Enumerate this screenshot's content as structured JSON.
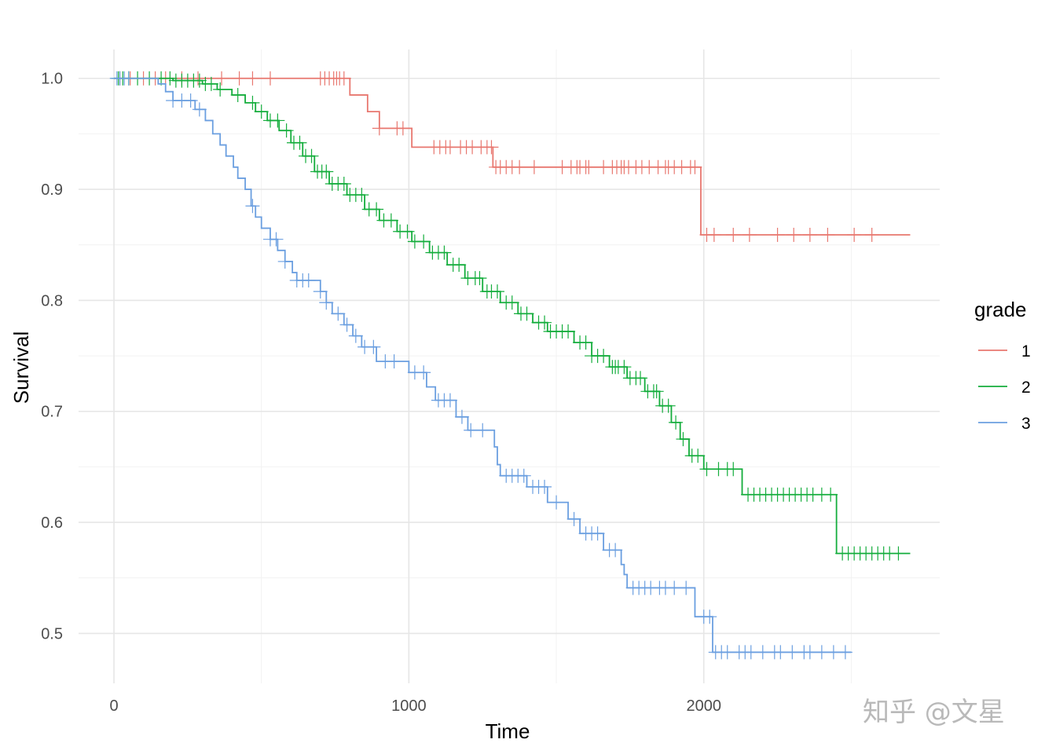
{
  "chart_data": {
    "type": "line",
    "step": true,
    "title": "",
    "xlabel": "Time",
    "ylabel": "Survival",
    "xlim": [
      -120,
      2800
    ],
    "ylim": [
      0.455,
      1.026
    ],
    "xticks": [
      0,
      1000,
      2000
    ],
    "xtick_labels": [
      "0",
      "1000",
      "2000"
    ],
    "yticks": [
      0.5,
      0.6,
      0.7,
      0.8,
      0.9,
      1.0
    ],
    "ytick_labels": [
      "0.5",
      "0.6",
      "0.7",
      "0.8",
      "0.9",
      "1.0"
    ],
    "grid": true,
    "legend": {
      "title": "grade",
      "position": "right"
    },
    "series": [
      {
        "name": "1",
        "color": "#e8776f",
        "steps": [
          [
            0,
            1.0
          ],
          [
            800,
            0.985
          ],
          [
            860,
            0.97
          ],
          [
            900,
            0.955
          ],
          [
            1010,
            0.938
          ],
          [
            1285,
            0.92
          ],
          [
            1990,
            0.859
          ],
          [
            2700,
            0.859
          ]
        ],
        "censor_times": [
          20,
          55,
          100,
          140,
          175,
          230,
          285,
          365,
          425,
          470,
          530,
          700,
          715,
          730,
          745,
          755,
          765,
          780,
          900,
          960,
          980,
          1085,
          1105,
          1125,
          1140,
          1175,
          1195,
          1215,
          1245,
          1265,
          1280,
          1295,
          1310,
          1330,
          1350,
          1375,
          1425,
          1520,
          1550,
          1570,
          1580,
          1600,
          1610,
          1660,
          1690,
          1705,
          1720,
          1730,
          1745,
          1770,
          1790,
          1815,
          1845,
          1870,
          1880,
          1900,
          1925,
          1955,
          1970,
          2010,
          2035,
          2100,
          2155,
          2250,
          2305,
          2360,
          2420,
          2510,
          2570
        ]
      },
      {
        "name": "2",
        "color": "#14ad3c",
        "steps": [
          [
            0,
            1.0
          ],
          [
            200,
            0.998
          ],
          [
            300,
            0.995
          ],
          [
            350,
            0.99
          ],
          [
            400,
            0.985
          ],
          [
            445,
            0.978
          ],
          [
            480,
            0.97
          ],
          [
            520,
            0.962
          ],
          [
            560,
            0.953
          ],
          [
            600,
            0.942
          ],
          [
            640,
            0.93
          ],
          [
            680,
            0.916
          ],
          [
            730,
            0.905
          ],
          [
            790,
            0.895
          ],
          [
            850,
            0.882
          ],
          [
            900,
            0.872
          ],
          [
            960,
            0.862
          ],
          [
            1010,
            0.853
          ],
          [
            1070,
            0.843
          ],
          [
            1130,
            0.832
          ],
          [
            1190,
            0.82
          ],
          [
            1250,
            0.808
          ],
          [
            1310,
            0.798
          ],
          [
            1370,
            0.788
          ],
          [
            1420,
            0.78
          ],
          [
            1470,
            0.772
          ],
          [
            1560,
            0.762
          ],
          [
            1620,
            0.75
          ],
          [
            1680,
            0.74
          ],
          [
            1740,
            0.73
          ],
          [
            1800,
            0.718
          ],
          [
            1850,
            0.705
          ],
          [
            1890,
            0.69
          ],
          [
            1920,
            0.675
          ],
          [
            1950,
            0.66
          ],
          [
            2000,
            0.648
          ],
          [
            2130,
            0.625
          ],
          [
            2450,
            0.572
          ],
          [
            2700,
            0.572
          ]
        ],
        "censor_times": [
          15,
          30,
          50,
          80,
          120,
          160,
          190,
          210,
          230,
          250,
          270,
          290,
          310,
          330,
          360,
          420,
          470,
          500,
          530,
          555,
          585,
          610,
          630,
          650,
          670,
          690,
          705,
          720,
          740,
          760,
          780,
          800,
          820,
          840,
          865,
          890,
          915,
          940,
          970,
          995,
          1020,
          1050,
          1080,
          1100,
          1120,
          1150,
          1170,
          1200,
          1225,
          1240,
          1265,
          1280,
          1300,
          1330,
          1350,
          1380,
          1400,
          1440,
          1460,
          1480,
          1500,
          1520,
          1540,
          1580,
          1600,
          1620,
          1640,
          1660,
          1690,
          1700,
          1710,
          1730,
          1750,
          1770,
          1785,
          1810,
          1830,
          1840,
          1860,
          1880,
          1905,
          1930,
          1960,
          1980,
          2010,
          2050,
          2080,
          2100,
          2150,
          2170,
          2190,
          2210,
          2230,
          2250,
          2270,
          2290,
          2310,
          2330,
          2350,
          2370,
          2400,
          2430,
          2470,
          2490,
          2510,
          2530,
          2550,
          2570,
          2590,
          2610,
          2630,
          2660
        ]
      },
      {
        "name": "3",
        "color": "#6b9fe0",
        "steps": [
          [
            0,
            1.0
          ],
          [
            150,
            0.995
          ],
          [
            175,
            0.988
          ],
          [
            200,
            0.98
          ],
          [
            275,
            0.972
          ],
          [
            310,
            0.962
          ],
          [
            335,
            0.95
          ],
          [
            360,
            0.94
          ],
          [
            380,
            0.93
          ],
          [
            405,
            0.92
          ],
          [
            420,
            0.91
          ],
          [
            445,
            0.9
          ],
          [
            465,
            0.885
          ],
          [
            480,
            0.875
          ],
          [
            500,
            0.865
          ],
          [
            530,
            0.855
          ],
          [
            555,
            0.845
          ],
          [
            580,
            0.835
          ],
          [
            605,
            0.825
          ],
          [
            620,
            0.818
          ],
          [
            700,
            0.808
          ],
          [
            720,
            0.798
          ],
          [
            740,
            0.788
          ],
          [
            780,
            0.778
          ],
          [
            810,
            0.768
          ],
          [
            840,
            0.758
          ],
          [
            890,
            0.745
          ],
          [
            1000,
            0.735
          ],
          [
            1060,
            0.722
          ],
          [
            1090,
            0.71
          ],
          [
            1160,
            0.695
          ],
          [
            1200,
            0.683
          ],
          [
            1290,
            0.668
          ],
          [
            1300,
            0.652
          ],
          [
            1310,
            0.642
          ],
          [
            1400,
            0.632
          ],
          [
            1470,
            0.618
          ],
          [
            1540,
            0.603
          ],
          [
            1580,
            0.59
          ],
          [
            1660,
            0.575
          ],
          [
            1720,
            0.562
          ],
          [
            1730,
            0.553
          ],
          [
            1740,
            0.541
          ],
          [
            1970,
            0.515
          ],
          [
            2030,
            0.483
          ],
          [
            2500,
            0.483
          ]
        ],
        "censor_times": [
          10,
          20,
          35,
          50,
          200,
          230,
          260,
          290,
          470,
          530,
          550,
          580,
          620,
          640,
          660,
          700,
          720,
          760,
          790,
          820,
          850,
          880,
          920,
          950,
          1020,
          1050,
          1100,
          1120,
          1140,
          1180,
          1210,
          1250,
          1330,
          1350,
          1370,
          1390,
          1420,
          1440,
          1460,
          1500,
          1560,
          1600,
          1620,
          1640,
          1680,
          1700,
          1760,
          1780,
          1800,
          1820,
          1850,
          1870,
          1900,
          1940,
          2000,
          2020,
          2040,
          2060,
          2080,
          2120,
          2140,
          2160,
          2200,
          2240,
          2260,
          2300,
          2340,
          2360,
          2400,
          2440,
          2480
        ]
      }
    ]
  },
  "watermark": "知乎 @文星"
}
